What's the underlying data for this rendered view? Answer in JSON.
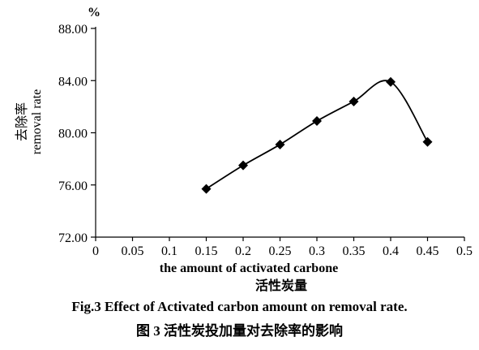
{
  "chart_data": {
    "type": "line",
    "unit_label": "%",
    "ylabel_cn": "去除率",
    "ylabel": "removal rate",
    "xlabel": "the amount of activated carbone",
    "xlabel_cn": "活性炭量",
    "xlim": [
      0,
      0.5
    ],
    "ylim": [
      72,
      88
    ],
    "x_ticks": [
      {
        "value": 0,
        "label": "0"
      },
      {
        "value": 0.05,
        "label": "0.05"
      },
      {
        "value": 0.1,
        "label": "0.1"
      },
      {
        "value": 0.15,
        "label": "0.15"
      },
      {
        "value": 0.2,
        "label": "0.2"
      },
      {
        "value": 0.25,
        "label": "0.25"
      },
      {
        "value": 0.3,
        "label": "0.3"
      },
      {
        "value": 0.35,
        "label": "0.35"
      },
      {
        "value": 0.4,
        "label": "0.4"
      },
      {
        "value": 0.45,
        "label": "0.45"
      },
      {
        "value": 0.5,
        "label": "0.5"
      }
    ],
    "y_ticks": [
      {
        "value": 72,
        "label": "72.00"
      },
      {
        "value": 76,
        "label": "76.00"
      },
      {
        "value": 80,
        "label": "80.00"
      },
      {
        "value": 84,
        "label": "84.00"
      },
      {
        "value": 88,
        "label": "88.00"
      }
    ],
    "series": [
      {
        "marker": "diamond",
        "x": [
          0.15,
          0.2,
          0.25,
          0.3,
          0.35,
          0.4,
          0.45
        ],
        "y": [
          75.7,
          77.5,
          79.1,
          80.9,
          82.4,
          83.9,
          79.3
        ]
      }
    ],
    "grid": false
  },
  "caption": {
    "line1": "Fig.3   Effect of Activated carbon amount on removal rate.",
    "line2": "图 3   活性炭投加量对去除率的影响"
  }
}
